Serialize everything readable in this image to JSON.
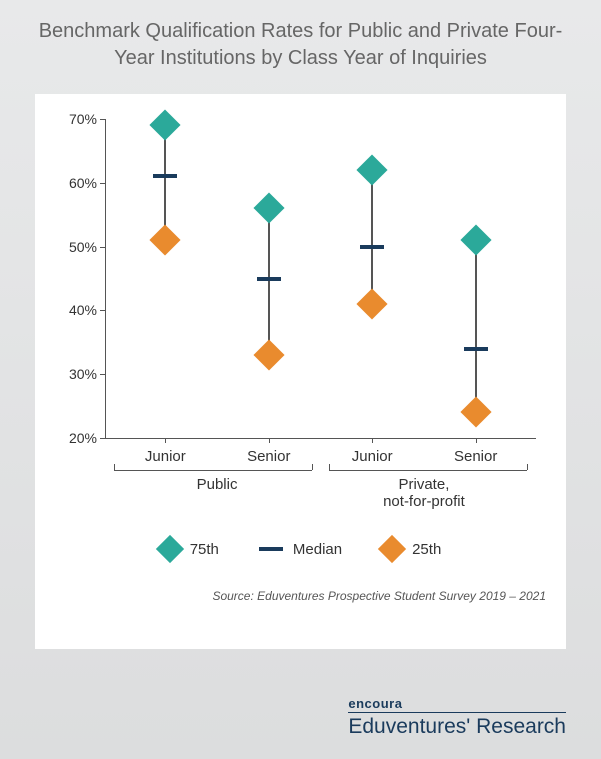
{
  "title": "Benchmark Qualification Rates for Public and Private Four-Year Institutions by Class Year of Inquiries",
  "chart": {
    "type": "range-dot",
    "background_color": "#ffffff",
    "ylim": [
      20,
      70
    ],
    "ytick_step": 10,
    "ytick_suffix": "%",
    "colors": {
      "p75": "#2ba99a",
      "p25": "#e98b2e",
      "median": "#1a3b5c",
      "axis": "#555555",
      "text": "#333333"
    },
    "groups": [
      {
        "label": "Public",
        "categories": [
          "Junior",
          "Senior"
        ]
      },
      {
        "label": "Private,\nnot-for-profit",
        "categories": [
          "Junior",
          "Senior"
        ]
      }
    ],
    "series": [
      {
        "category": "Junior",
        "group": "Public",
        "p25": 51,
        "median": 61,
        "p75": 69
      },
      {
        "category": "Senior",
        "group": "Public",
        "p25": 33,
        "median": 45,
        "p75": 56
      },
      {
        "category": "Junior",
        "group": "Private, not-for-profit",
        "p25": 41,
        "median": 50,
        "p75": 62
      },
      {
        "category": "Senior",
        "group": "Private, not-for-profit",
        "p25": 24,
        "median": 34,
        "p75": 51
      }
    ],
    "legend": [
      {
        "key": "p75",
        "label": "75th",
        "shape": "diamond",
        "color": "#2ba99a"
      },
      {
        "key": "median",
        "label": "Median",
        "shape": "tick",
        "color": "#1a3b5c"
      },
      {
        "key": "p25",
        "label": "25th",
        "shape": "diamond",
        "color": "#e98b2e"
      }
    ],
    "x_positions_pct": [
      14,
      38,
      62,
      86
    ]
  },
  "source": "Source: Eduventures Prospective Student Survey 2019 – 2021",
  "footer": {
    "brand": "encoura",
    "subbrand": "Eduventures' Research"
  }
}
